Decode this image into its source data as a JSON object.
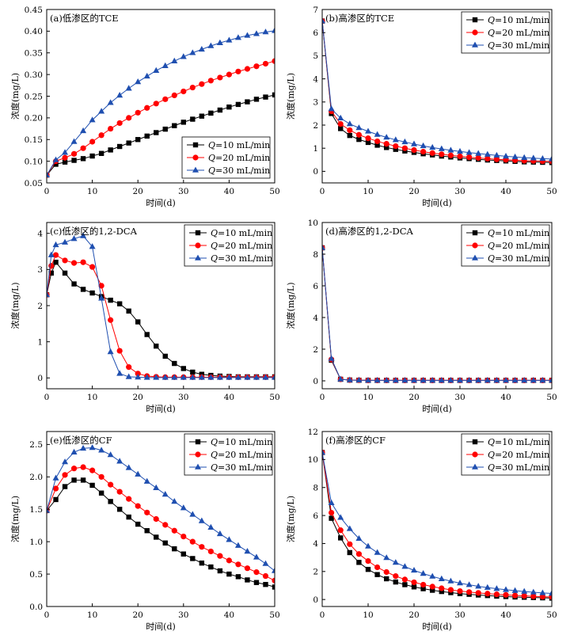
{
  "chart_data": [
    {
      "type": "line",
      "title": "(a)低渗区的TCE",
      "xlabel": "时间(d)",
      "ylabel": "浓度(mg/L)",
      "xlim": [
        0,
        50
      ],
      "ylim": [
        0.05,
        0.45
      ],
      "xticks": [
        0,
        10,
        20,
        30,
        40,
        50
      ],
      "yticks": [
        0.05,
        0.1,
        0.15,
        0.2,
        0.25,
        0.3,
        0.35,
        0.4,
        0.45
      ],
      "ytick_labels": [
        "0.05",
        "0.10",
        "0.15",
        "0.20",
        "0.25",
        "0.30",
        "0.35",
        "0.40",
        "0.45"
      ],
      "legend_position": "bottom-right",
      "x": [
        0,
        2,
        4,
        6,
        8,
        10,
        12,
        14,
        16,
        18,
        20,
        22,
        24,
        26,
        28,
        30,
        32,
        34,
        36,
        38,
        40,
        42,
        44,
        46,
        48,
        50
      ],
      "series": [
        {
          "name": "Q=10 mL/min",
          "values": [
            0.068,
            0.093,
            0.098,
            0.102,
            0.106,
            0.112,
            0.118,
            0.126,
            0.134,
            0.142,
            0.15,
            0.158,
            0.166,
            0.174,
            0.182,
            0.19,
            0.197,
            0.204,
            0.211,
            0.218,
            0.225,
            0.231,
            0.237,
            0.243,
            0.248,
            0.253
          ]
        },
        {
          "name": "Q=20 mL/min",
          "values": [
            0.068,
            0.1,
            0.108,
            0.117,
            0.13,
            0.145,
            0.16,
            0.175,
            0.188,
            0.2,
            0.212,
            0.223,
            0.233,
            0.243,
            0.252,
            0.261,
            0.27,
            0.278,
            0.286,
            0.293,
            0.3,
            0.307,
            0.313,
            0.319,
            0.325,
            0.331
          ]
        },
        {
          "name": "Q=30 mL/min",
          "values": [
            0.068,
            0.103,
            0.12,
            0.145,
            0.17,
            0.195,
            0.215,
            0.235,
            0.252,
            0.268,
            0.283,
            0.296,
            0.309,
            0.32,
            0.331,
            0.341,
            0.35,
            0.358,
            0.366,
            0.373,
            0.379,
            0.385,
            0.39,
            0.394,
            0.398,
            0.401
          ]
        }
      ]
    },
    {
      "type": "line",
      "title": "(b)高渗区的TCE",
      "xlabel": "时间(d)",
      "ylabel": "浓度(mg/L)",
      "xlim": [
        0,
        50
      ],
      "ylim": [
        -0.5,
        7
      ],
      "xticks": [
        0,
        10,
        20,
        30,
        40,
        50
      ],
      "yticks": [
        0,
        1,
        2,
        3,
        4,
        5,
        6,
        7
      ],
      "ytick_labels": [
        "0",
        "1",
        "2",
        "3",
        "4",
        "5",
        "6",
        "7"
      ],
      "legend_position": "top-right",
      "x": [
        0,
        2,
        4,
        6,
        8,
        10,
        12,
        14,
        16,
        18,
        20,
        22,
        24,
        26,
        28,
        30,
        32,
        34,
        36,
        38,
        40,
        42,
        44,
        46,
        48,
        50
      ],
      "series": [
        {
          "name": "Q=10 mL/min",
          "values": [
            6.5,
            2.5,
            1.85,
            1.55,
            1.38,
            1.25,
            1.13,
            1.03,
            0.95,
            0.88,
            0.82,
            0.76,
            0.71,
            0.66,
            0.62,
            0.58,
            0.55,
            0.52,
            0.49,
            0.47,
            0.45,
            0.43,
            0.41,
            0.4,
            0.39,
            0.38
          ]
        },
        {
          "name": "Q=20 mL/min",
          "values": [
            6.5,
            2.6,
            2.05,
            1.78,
            1.58,
            1.43,
            1.3,
            1.19,
            1.09,
            1.0,
            0.92,
            0.85,
            0.79,
            0.74,
            0.69,
            0.65,
            0.61,
            0.58,
            0.55,
            0.52,
            0.5,
            0.48,
            0.46,
            0.45,
            0.44,
            0.43
          ]
        },
        {
          "name": "Q=30 mL/min",
          "values": [
            6.5,
            2.7,
            2.3,
            2.05,
            1.88,
            1.73,
            1.59,
            1.47,
            1.36,
            1.27,
            1.18,
            1.1,
            1.03,
            0.97,
            0.91,
            0.86,
            0.81,
            0.77,
            0.73,
            0.69,
            0.65,
            0.62,
            0.59,
            0.57,
            0.55,
            0.53
          ]
        }
      ]
    },
    {
      "type": "line",
      "title": "(c)低渗区的1,2-DCA",
      "xlabel": "时间(d)",
      "ylabel": "浓度(mg/L)",
      "xlim": [
        0,
        50
      ],
      "ylim": [
        -0.3,
        4.3
      ],
      "xticks": [
        0,
        10,
        20,
        30,
        40,
        50
      ],
      "yticks": [
        0,
        1,
        2,
        3,
        4
      ],
      "ytick_labels": [
        "0",
        "1",
        "2",
        "3",
        "4"
      ],
      "legend_position": "top-right",
      "x": [
        0,
        1,
        2,
        4,
        6,
        8,
        10,
        12,
        14,
        16,
        18,
        20,
        22,
        24,
        26,
        28,
        30,
        32,
        34,
        36,
        38,
        40,
        42,
        44,
        46,
        48,
        50
      ],
      "series": [
        {
          "name": "Q=10 mL/min",
          "values": [
            2.3,
            2.9,
            3.2,
            2.9,
            2.6,
            2.45,
            2.35,
            2.25,
            2.15,
            2.05,
            1.85,
            1.55,
            1.2,
            0.88,
            0.6,
            0.4,
            0.26,
            0.16,
            0.1,
            0.07,
            0.05,
            0.04,
            0.03,
            0.03,
            0.03,
            0.03,
            0.03
          ]
        },
        {
          "name": "Q=20 mL/min",
          "values": [
            2.3,
            3.1,
            3.4,
            3.25,
            3.18,
            3.2,
            3.07,
            2.55,
            1.6,
            0.75,
            0.3,
            0.12,
            0.05,
            0.03,
            0.02,
            0.02,
            0.02,
            0.02,
            0.02,
            0.02,
            0.02,
            0.02,
            0.02,
            0.02,
            0.02,
            0.02,
            0.02
          ]
        },
        {
          "name": "Q=30 mL/min",
          "values": [
            2.3,
            3.4,
            3.68,
            3.75,
            3.85,
            3.93,
            3.63,
            2.2,
            0.72,
            0.12,
            0.03,
            0.02,
            0.01,
            0.01,
            0.01,
            0.01,
            0.01,
            0.01,
            0.01,
            0.01,
            0.01,
            0.01,
            0.01,
            0.01,
            0.01,
            0.01,
            0.01
          ]
        }
      ]
    },
    {
      "type": "line",
      "title": "(d)高渗区的1,2-DCA",
      "xlabel": "时间(d)",
      "ylabel": "浓度(mg/L)",
      "xlim": [
        0,
        50
      ],
      "ylim": [
        -0.5,
        10
      ],
      "xticks": [
        0,
        10,
        20,
        30,
        40,
        50
      ],
      "yticks": [
        0,
        2,
        4,
        6,
        8,
        10
      ],
      "ytick_labels": [
        "0",
        "2",
        "4",
        "6",
        "8",
        "10"
      ],
      "legend_position": "top-right",
      "x": [
        0,
        2,
        4,
        6,
        8,
        10,
        12,
        14,
        16,
        18,
        20,
        22,
        24,
        26,
        28,
        30,
        32,
        34,
        36,
        38,
        40,
        42,
        44,
        46,
        48,
        50
      ],
      "series": [
        {
          "name": "Q=10 mL/min",
          "values": [
            8.4,
            1.3,
            0.1,
            0.05,
            0.04,
            0.03,
            0.03,
            0.03,
            0.03,
            0.03,
            0.03,
            0.03,
            0.03,
            0.03,
            0.03,
            0.03,
            0.03,
            0.03,
            0.03,
            0.03,
            0.03,
            0.03,
            0.03,
            0.03,
            0.03,
            0.03
          ]
        },
        {
          "name": "Q=20 mL/min",
          "values": [
            8.4,
            1.35,
            0.1,
            0.05,
            0.04,
            0.03,
            0.03,
            0.03,
            0.03,
            0.03,
            0.03,
            0.03,
            0.03,
            0.03,
            0.03,
            0.03,
            0.03,
            0.03,
            0.03,
            0.03,
            0.03,
            0.03,
            0.03,
            0.03,
            0.03,
            0.03
          ]
        },
        {
          "name": "Q=30 mL/min",
          "values": [
            8.4,
            1.4,
            0.1,
            0.05,
            0.04,
            0.03,
            0.03,
            0.03,
            0.03,
            0.03,
            0.03,
            0.03,
            0.03,
            0.03,
            0.03,
            0.03,
            0.03,
            0.03,
            0.03,
            0.03,
            0.03,
            0.03,
            0.03,
            0.03,
            0.03,
            0.03
          ]
        }
      ]
    },
    {
      "type": "line",
      "title": "(e)低渗区的CF",
      "xlabel": "时间(d)",
      "ylabel": "浓度(mg/L)",
      "xlim": [
        0,
        50
      ],
      "ylim": [
        0,
        2.7
      ],
      "xticks": [
        0,
        10,
        20,
        30,
        40,
        50
      ],
      "yticks": [
        0,
        0.5,
        1.0,
        1.5,
        2.0,
        2.5
      ],
      "ytick_labels": [
        "0.0",
        "0.5",
        "1.0",
        "1.5",
        "2.0",
        "2.5"
      ],
      "legend_position": "top-right",
      "x": [
        0,
        2,
        4,
        6,
        8,
        10,
        12,
        14,
        16,
        18,
        20,
        22,
        24,
        26,
        28,
        30,
        32,
        34,
        36,
        38,
        40,
        42,
        44,
        46,
        48,
        50
      ],
      "series": [
        {
          "name": "Q=10 mL/min",
          "values": [
            1.48,
            1.65,
            1.85,
            1.95,
            1.95,
            1.87,
            1.75,
            1.62,
            1.5,
            1.38,
            1.27,
            1.17,
            1.07,
            0.98,
            0.89,
            0.81,
            0.74,
            0.67,
            0.61,
            0.55,
            0.5,
            0.46,
            0.41,
            0.37,
            0.34,
            0.3
          ]
        },
        {
          "name": "Q=20 mL/min",
          "values": [
            1.48,
            1.82,
            2.03,
            2.13,
            2.15,
            2.1,
            2.0,
            1.88,
            1.77,
            1.66,
            1.55,
            1.45,
            1.35,
            1.26,
            1.17,
            1.08,
            1.0,
            0.92,
            0.85,
            0.78,
            0.71,
            0.65,
            0.59,
            0.53,
            0.47,
            0.4
          ]
        },
        {
          "name": "Q=30 mL/min",
          "values": [
            1.48,
            1.98,
            2.23,
            2.38,
            2.44,
            2.45,
            2.41,
            2.34,
            2.24,
            2.14,
            2.04,
            1.93,
            1.83,
            1.73,
            1.62,
            1.52,
            1.42,
            1.32,
            1.22,
            1.12,
            1.03,
            0.94,
            0.85,
            0.76,
            0.66,
            0.55
          ]
        }
      ]
    },
    {
      "type": "line",
      "title": "(f)高渗区的CF",
      "xlabel": "时间(d)",
      "ylabel": "浓度(mg/L)",
      "xlim": [
        0,
        50
      ],
      "ylim": [
        -0.5,
        12
      ],
      "xticks": [
        0,
        10,
        20,
        30,
        40,
        50
      ],
      "yticks": [
        0,
        2,
        4,
        6,
        8,
        10,
        12
      ],
      "ytick_labels": [
        "0",
        "2",
        "4",
        "6",
        "8",
        "10",
        "12"
      ],
      "legend_position": "top-right",
      "x": [
        0,
        2,
        4,
        6,
        8,
        10,
        12,
        14,
        16,
        18,
        20,
        22,
        24,
        26,
        28,
        30,
        32,
        34,
        36,
        38,
        40,
        42,
        44,
        46,
        48,
        50
      ],
      "series": [
        {
          "name": "Q=10 mL/min",
          "values": [
            10.5,
            5.8,
            4.4,
            3.35,
            2.65,
            2.15,
            1.78,
            1.48,
            1.25,
            1.06,
            0.9,
            0.77,
            0.66,
            0.57,
            0.49,
            0.42,
            0.37,
            0.32,
            0.28,
            0.24,
            0.21,
            0.18,
            0.16,
            0.14,
            0.12,
            0.1
          ]
        },
        {
          "name": "Q=20 mL/min",
          "values": [
            10.5,
            6.2,
            4.95,
            3.95,
            3.25,
            2.75,
            2.3,
            1.96,
            1.67,
            1.43,
            1.23,
            1.06,
            0.92,
            0.8,
            0.69,
            0.6,
            0.53,
            0.47,
            0.42,
            0.37,
            0.33,
            0.29,
            0.26,
            0.23,
            0.2,
            0.18
          ]
        },
        {
          "name": "Q=30 mL/min",
          "values": [
            10.5,
            6.9,
            5.85,
            5.05,
            4.35,
            3.8,
            3.35,
            2.98,
            2.64,
            2.35,
            2.08,
            1.85,
            1.65,
            1.47,
            1.31,
            1.17,
            1.05,
            0.94,
            0.85,
            0.77,
            0.7,
            0.63,
            0.57,
            0.52,
            0.47,
            0.43
          ]
        }
      ]
    }
  ],
  "series_style": [
    {
      "color": "#000000",
      "marker": "square"
    },
    {
      "color": "#ff0000",
      "marker": "circle"
    },
    {
      "color": "#1f4fb0",
      "marker": "triangle"
    }
  ],
  "legend_q_letter": "Q",
  "legend_q_suffixes": [
    "=10 mL/min",
    "=20 mL/min",
    "=30 mL/min"
  ]
}
